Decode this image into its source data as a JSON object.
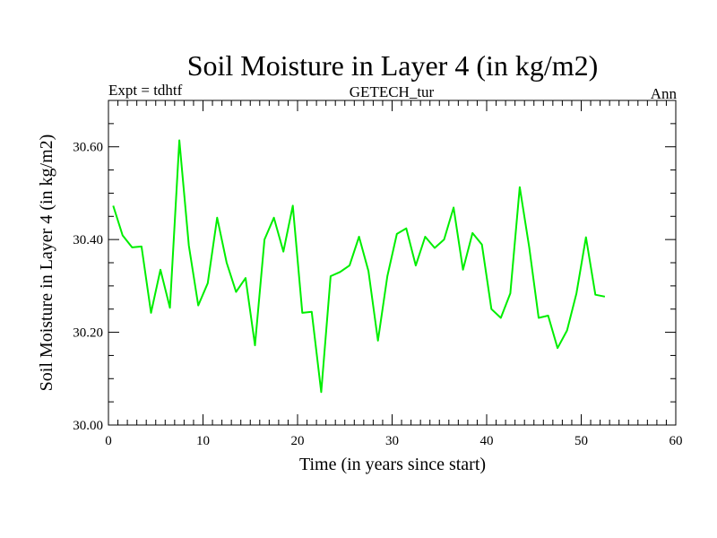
{
  "chart_data": {
    "type": "line",
    "title": "Soil Moisture in Layer 4 (in kg/m2)",
    "subtitle_left": "Expt = tdhtf",
    "subtitle_center": "GETECH_tur",
    "subtitle_right": "Ann",
    "xlabel": "Time (in years since start)",
    "ylabel": "Soil Moisture in Layer 4 (in kg/m2)",
    "xlim": [
      0,
      60
    ],
    "ylim": [
      30.0,
      30.7
    ],
    "xticks": [
      0,
      10,
      20,
      30,
      40,
      50,
      60
    ],
    "xtick_labels": [
      "0",
      "10",
      "20",
      "30",
      "40",
      "50",
      "60"
    ],
    "yticks": [
      30.0,
      30.2,
      30.4,
      30.6
    ],
    "ytick_labels": [
      "30.00",
      "30.20",
      "30.40",
      "30.60"
    ],
    "line_color": "#00ee00",
    "series": [
      {
        "name": "Soil Moisture Layer 4",
        "x": [
          0.5,
          1.5,
          2.5,
          3.5,
          4.5,
          5.5,
          6.5,
          7.5,
          8.5,
          9.5,
          10.5,
          11.5,
          12.5,
          13.5,
          14.5,
          15.5,
          16.5,
          17.5,
          18.5,
          19.5,
          20.5,
          21.5,
          22.5,
          23.5,
          24.5,
          25.5,
          26.5,
          27.5,
          28.5,
          29.5,
          30.5,
          31.5,
          32.5,
          33.5,
          34.5,
          35.5,
          36.5,
          37.5,
          38.5,
          39.5,
          40.5,
          41.5,
          42.5,
          43.5,
          44.5,
          45.5,
          46.5,
          47.5,
          48.5,
          49.5,
          50.5,
          51.5,
          52.5
        ],
        "values": [
          30.473,
          30.409,
          30.383,
          30.385,
          30.242,
          30.335,
          30.253,
          30.614,
          30.387,
          30.258,
          30.306,
          30.447,
          30.35,
          30.287,
          30.317,
          30.172,
          30.4,
          30.447,
          30.374,
          30.473,
          30.242,
          30.244,
          30.071,
          30.321,
          30.33,
          30.344,
          30.406,
          30.332,
          30.182,
          30.321,
          30.412,
          30.424,
          30.344,
          30.406,
          30.382,
          30.4,
          30.469,
          30.335,
          30.414,
          30.389,
          30.25,
          30.231,
          30.284,
          30.513,
          30.383,
          30.231,
          30.236,
          30.166,
          30.204,
          30.284,
          30.405,
          30.281,
          30.277
        ]
      }
    ]
  }
}
